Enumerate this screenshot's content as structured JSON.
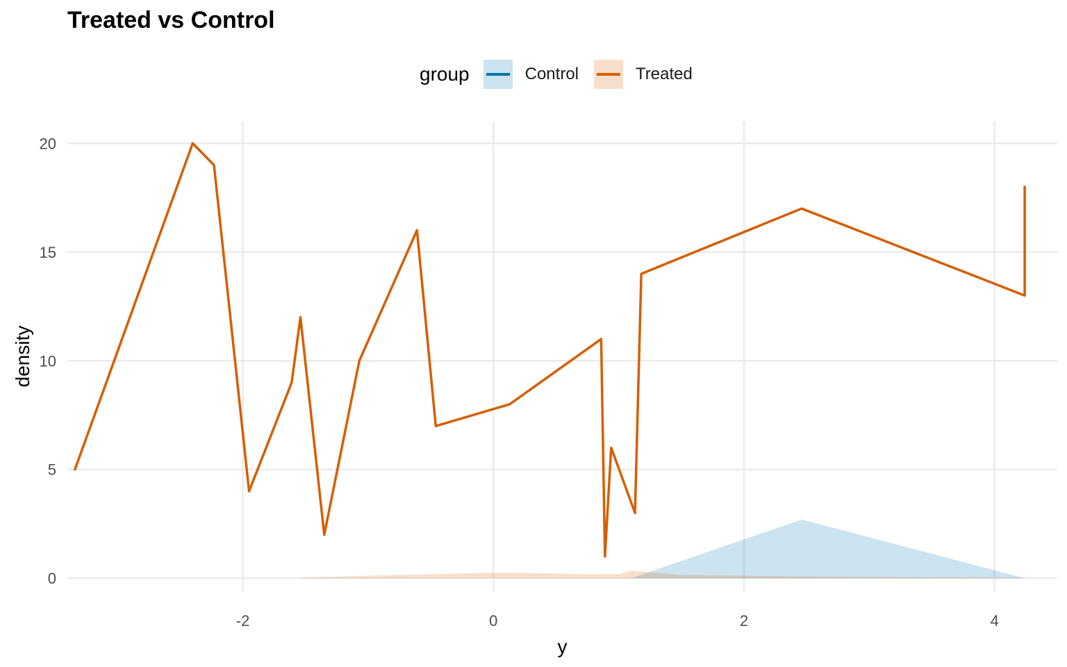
{
  "chart_data": {
    "type": "area",
    "title": "Treated vs Control",
    "xlabel": "y",
    "ylabel": "density",
    "xlim": [
      -3.4,
      4.5
    ],
    "ylim": [
      -0.6,
      21.0
    ],
    "x_ticks": [
      -2,
      0,
      2,
      4
    ],
    "y_ticks": [
      0,
      5,
      10,
      15,
      20
    ],
    "x_tick_labels": [
      "-2",
      "0",
      "2",
      "4"
    ],
    "y_tick_labels": [
      "0",
      "5",
      "10",
      "15",
      "20"
    ],
    "grid": true,
    "legend": {
      "title": "group",
      "position": "top",
      "entries": [
        "Control",
        "Treated"
      ]
    },
    "series": [
      {
        "name": "Treated",
        "role": "line",
        "color": "#D55E00",
        "x": [
          -3.34,
          -2.4,
          -2.23,
          -1.95,
          -1.61,
          -1.54,
          -1.35,
          -1.07,
          -0.61,
          -0.46,
          0.13,
          0.86,
          0.89,
          0.94,
          1.13,
          1.18,
          2.46,
          4.24,
          4.24
        ],
        "y": [
          5,
          20,
          19,
          4,
          9,
          12,
          2,
          10,
          16,
          7,
          8,
          11,
          1,
          6,
          3,
          14,
          17,
          13,
          18
        ]
      },
      {
        "name": "Control",
        "role": "density-area",
        "color": "#0072B2",
        "fill_opacity": 0.2,
        "x": [
          1.1,
          2.46,
          4.24
        ],
        "y": [
          0,
          2.7,
          0
        ]
      },
      {
        "name": "Treated",
        "role": "density-area",
        "color": "#D55E00",
        "fill_opacity": 0.2,
        "x": [
          -1.54,
          -1.0,
          -0.6,
          0.0,
          0.3,
          0.8,
          1.0,
          1.1,
          1.5,
          2.46,
          3.5,
          4.24
        ],
        "y": [
          0.03,
          0.12,
          0.17,
          0.25,
          0.24,
          0.18,
          0.2,
          0.35,
          0.15,
          0.08,
          0.04,
          0.02
        ]
      }
    ]
  }
}
